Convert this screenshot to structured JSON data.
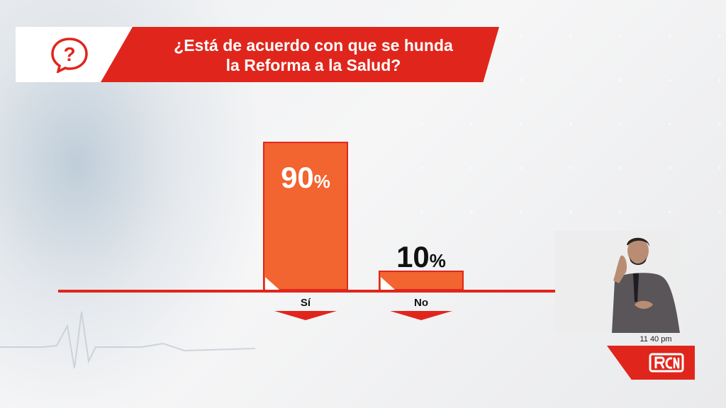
{
  "title": {
    "line1": "¿Está de acuerdo con que se hunda",
    "line2": "la Reforma a la Salud?"
  },
  "icons": {
    "question": "question-bubble-icon",
    "broadcaster_logo": "rcn-logo-icon"
  },
  "colors": {
    "accent_red": "#e0261c",
    "bar_orange": "#f26430",
    "axis_red": "#e0261c"
  },
  "chart_data": {
    "type": "bar",
    "categories": [
      "Sí",
      "No"
    ],
    "values": [
      90,
      10
    ],
    "value_labels": [
      "90%",
      "10%"
    ],
    "ylim": [
      0,
      100
    ],
    "title": "¿Está de acuerdo con que se hunda la Reforma a la Salud?",
    "xlabel": "",
    "ylabel": "",
    "grid": false
  },
  "broadcast": {
    "time": "11 40 pm"
  }
}
